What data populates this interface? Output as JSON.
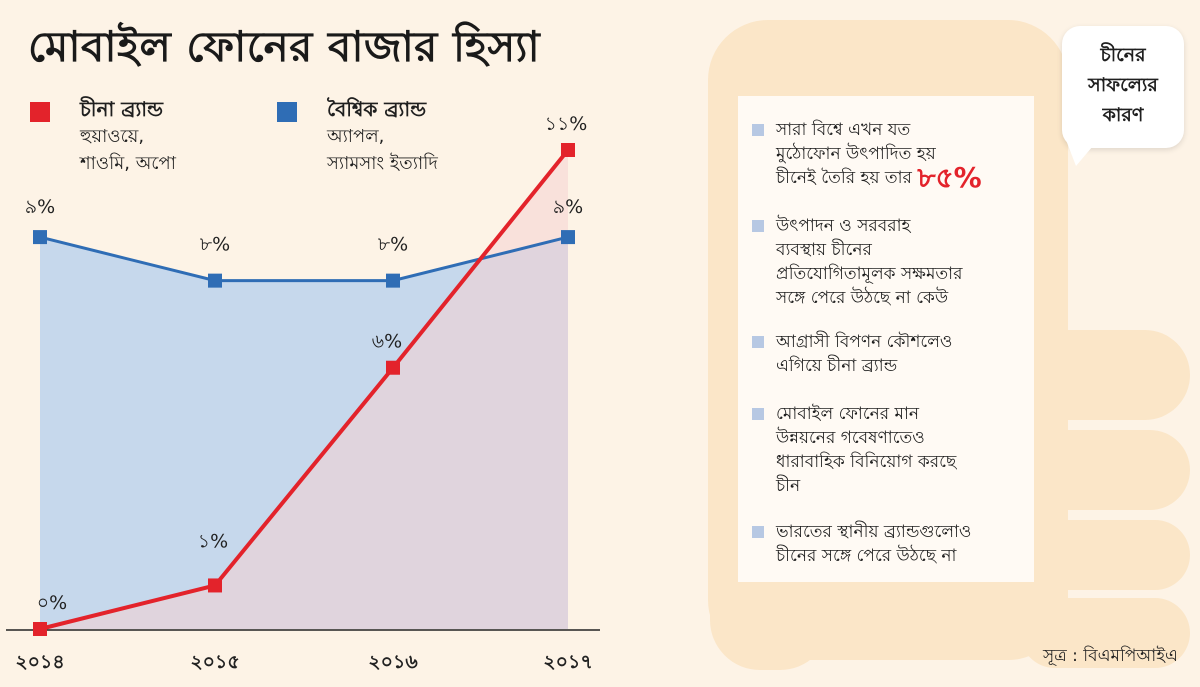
{
  "title": "মোবাইল ফোনের বাজার হিস্যা",
  "legend": [
    {
      "name": "চীনা ব্র্যান্ড",
      "desc1": "হুয়াওয়ে,",
      "desc2": "শাওমি, অপো",
      "color": "#e3232b"
    },
    {
      "name": "বৈশ্বিক ব্র্যান্ড",
      "desc1": "অ্যাপল,",
      "desc2": "স্যামসাং ইত্যাদি",
      "color": "#2f6db5"
    }
  ],
  "chart_data": {
    "type": "line",
    "x": [
      "২০১৪",
      "২০১৫",
      "২০১৬",
      "২০১৭"
    ],
    "series": [
      {
        "name": "বৈশ্বিক ব্র্যান্ড",
        "values": [
          9,
          8,
          8,
          9
        ],
        "labels": [
          "৯%",
          "৮%",
          "৮%",
          "৯%"
        ],
        "color": "#2f6db5",
        "fill": "#c6d8ec"
      },
      {
        "name": "চীনা ব্র্যান্ড",
        "values": [
          0,
          1,
          6,
          11
        ],
        "labels": [
          "০%",
          "১%",
          "৬%",
          "১১%"
        ],
        "color": "#e3232b",
        "fill": "#f6d2d2"
      }
    ],
    "ylim": [
      0,
      11
    ],
    "area": true,
    "grid": false
  },
  "panel": {
    "heading_line1": "চীনের",
    "heading_line2": "সাফল্যের",
    "heading_line3": "কারণ",
    "reasons": [
      {
        "lines": [
          "সারা বিশ্বে এখন যত",
          "মুঠোফোন উৎপাদিত হয়",
          "চীনেই তৈরি হয় তার"
        ],
        "highlight": "৮৫%"
      },
      {
        "lines": [
          "উৎপাদন ও সরবরাহ",
          "ব্যবস্থায় চীনের",
          "প্রতিযোগিতামূলক সক্ষমতার",
          "সঙ্গে পেরে উঠছে না কেউ"
        ]
      },
      {
        "lines": [
          "আগ্রাসী বিপণন কৌশলেও",
          "এগিয়ে চীনা ব্র্যান্ড"
        ]
      },
      {
        "lines": [
          "মোবাইল ফোনের মান",
          "উন্নয়নের গবেষণাতেও",
          "ধারাবাহিক বিনিয়োগ করছে",
          "চীন"
        ]
      },
      {
        "lines": [
          "ভারতের স্থানীয় ব্র্যান্ডগুলোও",
          "চীনের সঙ্গে পেরে উঠছে না"
        ]
      }
    ]
  },
  "source": "সূত্র : বিএমপিআইএ"
}
